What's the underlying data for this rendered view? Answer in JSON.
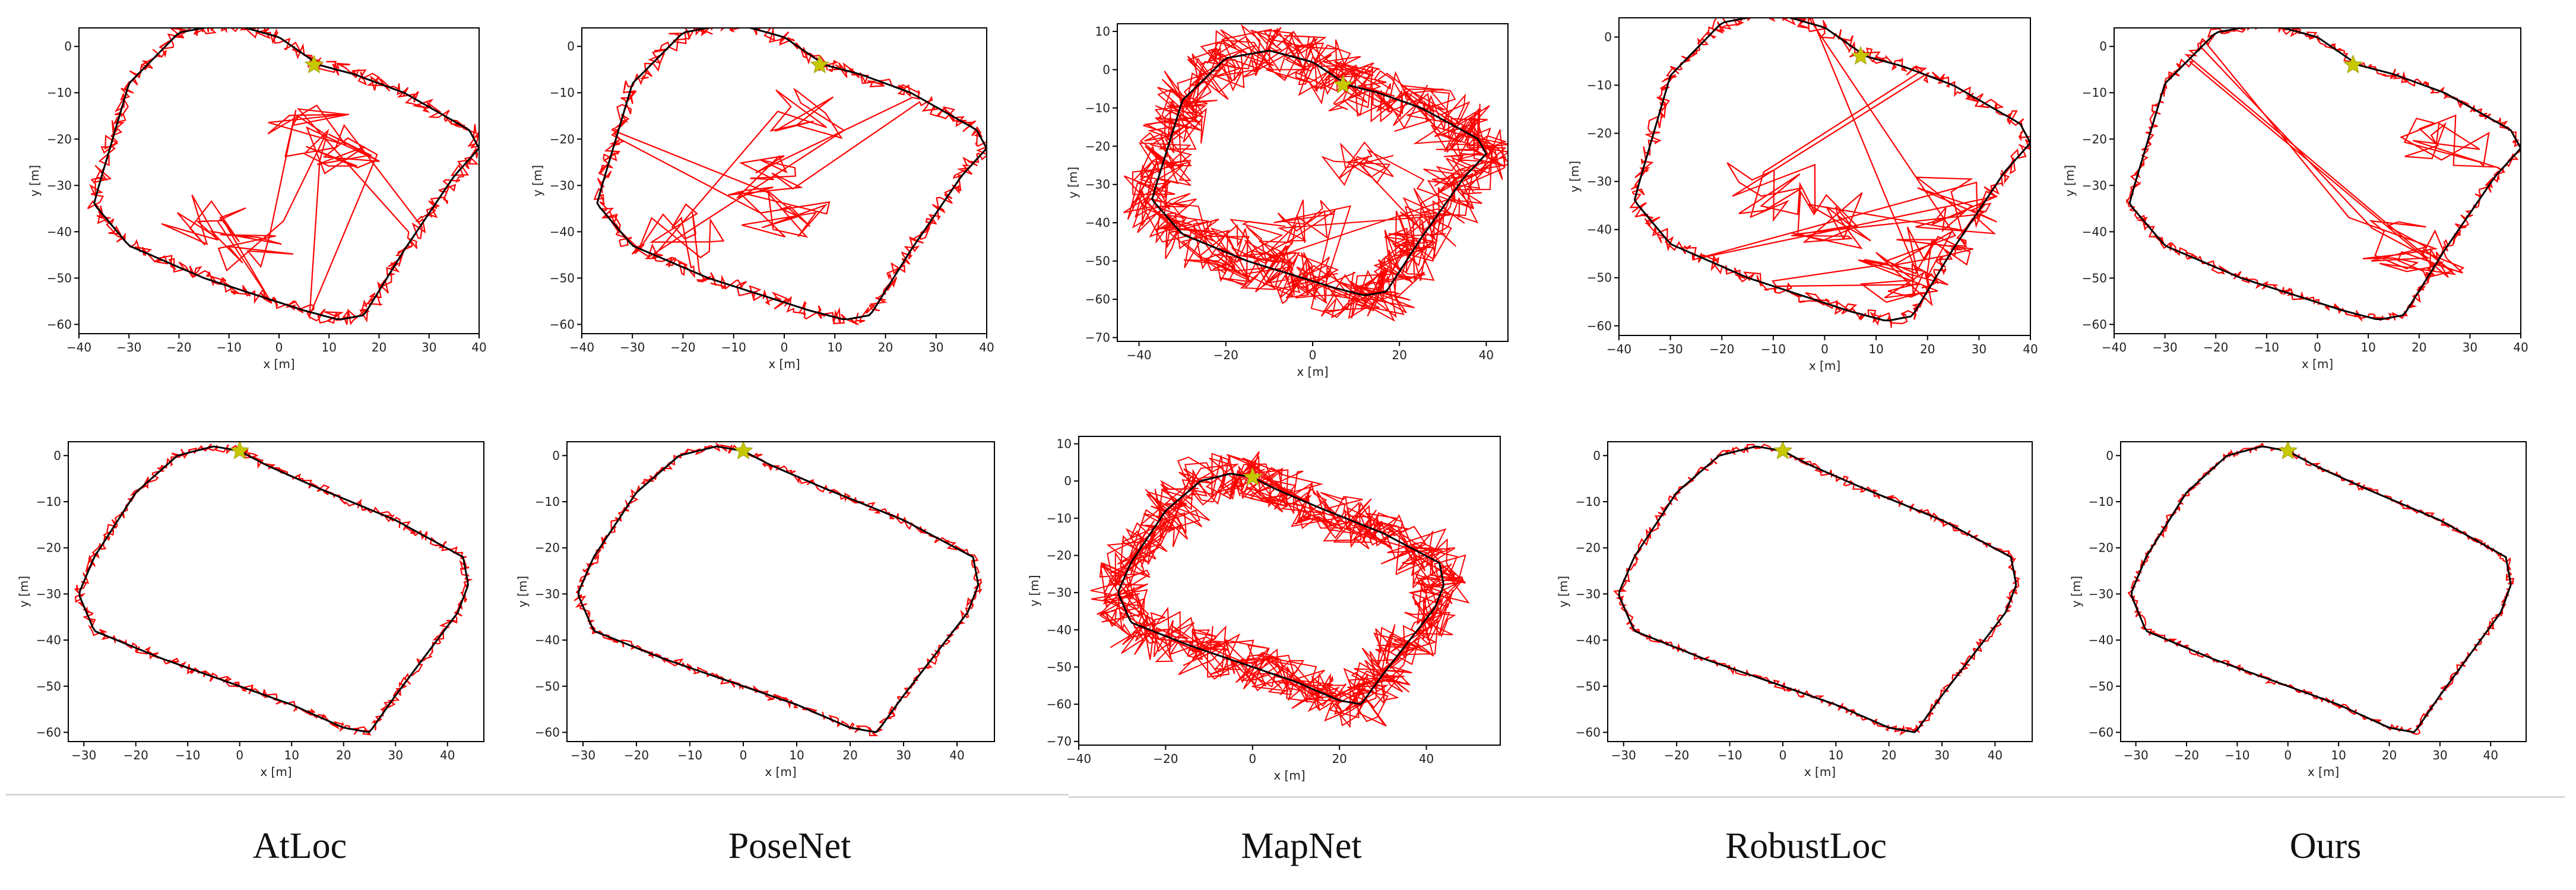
{
  "chart_data": {
    "type": "line",
    "description_row_labels": [
      "",
      ""
    ],
    "captions": [
      "AtLoc",
      "PoseNet",
      "MapNet",
      "RobustLoc",
      "Ours"
    ],
    "xlabel": "x [m]",
    "ylabel": "y [m]",
    "rows": [
      {
        "ground_truth": [
          [
            8,
            -4
          ],
          [
            0,
            2
          ],
          [
            -10,
            5
          ],
          [
            -20,
            3
          ],
          [
            -30,
            -8
          ],
          [
            -36,
            -30
          ],
          [
            -37,
            -34
          ],
          [
            -30,
            -43
          ],
          [
            -15,
            -50
          ],
          [
            5,
            -57
          ],
          [
            12,
            -59
          ],
          [
            17,
            -58
          ],
          [
            25,
            -44
          ],
          [
            35,
            -28
          ],
          [
            40,
            -22
          ],
          [
            38,
            -18
          ],
          [
            25,
            -10
          ],
          [
            15,
            -6
          ],
          [
            8,
            -4
          ]
        ],
        "start": [
          7,
          -4
        ],
        "panels": [
          {
            "method": "AtLoc",
            "xlim": [
              -40,
              40
            ],
            "ylim": [
              -62,
              4
            ],
            "xticks": [
              -40,
              -30,
              -20,
              -10,
              0,
              10,
              20,
              30,
              40
            ],
            "yticks": [
              0,
              -10,
              -20,
              -30,
              -40,
              -50,
              -60
            ],
            "noise": 1.6,
            "spikes": "interior_left"
          },
          {
            "method": "PoseNet",
            "xlim": [
              -40,
              40
            ],
            "ylim": [
              -62,
              4
            ],
            "xticks": [
              -40,
              -30,
              -20,
              -10,
              0,
              10,
              20,
              30,
              40
            ],
            "yticks": [
              0,
              -10,
              -20,
              -30,
              -40,
              -50,
              -60
            ],
            "noise": 1.6,
            "spikes": "interior_center"
          },
          {
            "method": "MapNet",
            "xlim": [
              -45,
              45
            ],
            "ylim": [
              -71,
              12
            ],
            "xticks": [
              -40,
              -20,
              0,
              20,
              40
            ],
            "yticks": [
              10,
              0,
              -10,
              -20,
              -30,
              -40,
              -50,
              -60,
              -70
            ],
            "noise": 7,
            "spikes": "interior_mid"
          },
          {
            "method": "RobustLoc",
            "xlim": [
              -40,
              40
            ],
            "ylim": [
              -62,
              4
            ],
            "xticks": [
              -40,
              -30,
              -20,
              -10,
              0,
              10,
              20,
              30,
              40
            ],
            "yticks": [
              0,
              -10,
              -20,
              -30,
              -40,
              -50,
              -60
            ],
            "noise": 1.5,
            "spikes": "interior_dense"
          },
          {
            "method": "Ours",
            "xlim": [
              -40,
              40
            ],
            "ylim": [
              -62,
              4
            ],
            "xticks": [
              -40,
              -30,
              -20,
              -10,
              0,
              10,
              20,
              30,
              40
            ],
            "yticks": [
              0,
              -10,
              -20,
              -30,
              -40,
              -50,
              -60
            ],
            "noise": 1.0,
            "spikes": "interior_small"
          }
        ]
      },
      {
        "ground_truth": [
          [
            0,
            1
          ],
          [
            -5,
            2
          ],
          [
            -12,
            0
          ],
          [
            -20,
            -8
          ],
          [
            -28,
            -22
          ],
          [
            -31,
            -30
          ],
          [
            -28,
            -38
          ],
          [
            -15,
            -44
          ],
          [
            10,
            -54
          ],
          [
            20,
            -59
          ],
          [
            25,
            -60
          ],
          [
            30,
            -52
          ],
          [
            42,
            -34
          ],
          [
            44,
            -28
          ],
          [
            43,
            -22
          ],
          [
            30,
            -14
          ],
          [
            15,
            -7
          ],
          [
            5,
            -2
          ],
          [
            0,
            1
          ]
        ],
        "start": [
          0,
          1
        ],
        "panels": [
          {
            "method": "AtLoc",
            "xlim": [
              -33,
              47
            ],
            "ylim": [
              -62,
              3
            ],
            "xticks": [
              -30,
              -20,
              -10,
              0,
              10,
              20,
              30,
              40
            ],
            "yticks": [
              0,
              -10,
              -20,
              -30,
              -40,
              -50,
              -60
            ],
            "noise": 1.0,
            "spikes": "none"
          },
          {
            "method": "PoseNet",
            "xlim": [
              -33,
              47
            ],
            "ylim": [
              -62,
              3
            ],
            "xticks": [
              -30,
              -20,
              -10,
              0,
              10,
              20,
              30,
              40
            ],
            "yticks": [
              0,
              -10,
              -20,
              -30,
              -40,
              -50,
              -60
            ],
            "noise": 0.9,
            "spikes": "none"
          },
          {
            "method": "MapNet",
            "xlim": [
              -40,
              57
            ],
            "ylim": [
              -71,
              12
            ],
            "xticks": [
              -40,
              -20,
              0,
              20,
              40
            ],
            "yticks": [
              10,
              0,
              -10,
              -20,
              -30,
              -40,
              -50,
              -60,
              -70
            ],
            "noise": 6.5,
            "spikes": "none"
          },
          {
            "method": "RobustLoc",
            "xlim": [
              -33,
              47
            ],
            "ylim": [
              -62,
              3
            ],
            "xticks": [
              -30,
              -20,
              -10,
              0,
              10,
              20,
              30,
              40
            ],
            "yticks": [
              0,
              -10,
              -20,
              -30,
              -40,
              -50,
              -60
            ],
            "noise": 0.8,
            "spikes": "none"
          },
          {
            "method": "Ours",
            "xlim": [
              -33,
              47
            ],
            "ylim": [
              -62,
              3
            ],
            "xticks": [
              -30,
              -20,
              -10,
              0,
              10,
              20,
              30,
              40
            ],
            "yticks": [
              0,
              -10,
              -20,
              -30,
              -40,
              -50,
              -60
            ],
            "noise": 0.7,
            "spikes": "none"
          }
        ]
      }
    ],
    "colors": {
      "ground_truth": "#000000",
      "prediction": "#ff0000",
      "start_marker": "#c8c800"
    }
  }
}
